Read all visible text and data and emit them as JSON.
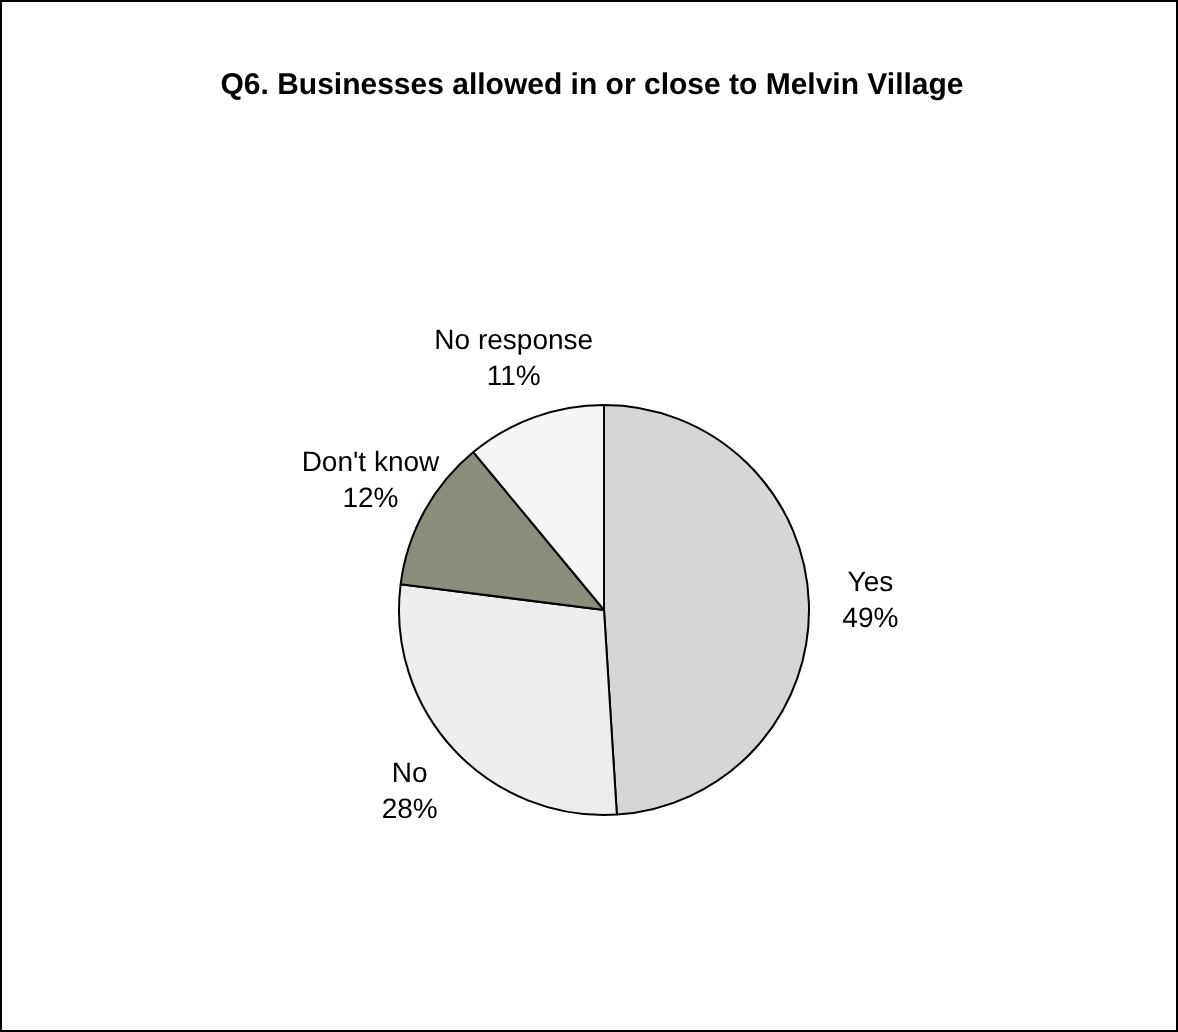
{
  "chart_data": {
    "type": "pie",
    "title": "Q6. Businesses allowed in or close to Melvin Village",
    "categories": [
      "Yes",
      "No",
      "Don't know",
      "No response"
    ],
    "values": [
      49,
      28,
      12,
      11
    ],
    "value_labels": [
      "49%",
      "28%",
      "12%",
      "11%"
    ],
    "colors": [
      "#d6d6d6",
      "#ededed",
      "#8c8c7c",
      "#f5f5f5"
    ],
    "legend": false
  }
}
